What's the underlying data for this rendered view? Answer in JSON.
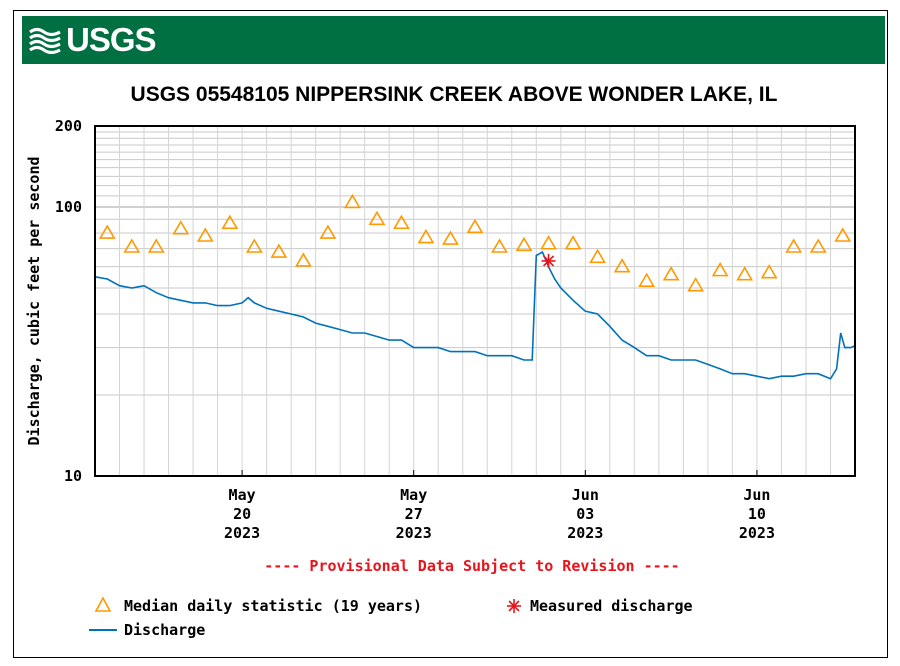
{
  "header": {
    "logo_text": "USGS",
    "logo_icon": "usgs-wave-icon",
    "brand_color": "#006f41"
  },
  "chart_data": {
    "type": "line",
    "title": "USGS 05548105 NIPPERSINK CREEK ABOVE WONDER LAKE, IL",
    "ylabel": "Discharge, cubic feet per second",
    "xlabel": "",
    "yscale": "log",
    "ylim": [
      10,
      200
    ],
    "xlim": [
      "2023-05-14",
      "2023-06-14"
    ],
    "grid": true,
    "y_tick_labels": [
      "10",
      "100",
      "200"
    ],
    "x_ticks": [
      {
        "date": "2023-05-20",
        "label": [
          "May",
          "20",
          "2023"
        ]
      },
      {
        "date": "2023-05-27",
        "label": [
          "May",
          "27",
          "2023"
        ]
      },
      {
        "date": "2023-06-03",
        "label": [
          "Jun",
          "03",
          "2023"
        ]
      },
      {
        "date": "2023-06-10",
        "label": [
          "Jun",
          "10",
          "2023"
        ]
      }
    ],
    "notice": "---- Provisional Data Subject to Revision ----",
    "series": [
      {
        "name": "Discharge",
        "color": "#0072bc",
        "points": [
          [
            "2023-05-14 00:00",
            55
          ],
          [
            "2023-05-14 12:00",
            54
          ],
          [
            "2023-05-15 00:00",
            51
          ],
          [
            "2023-05-15 12:00",
            50
          ],
          [
            "2023-05-16 00:00",
            51
          ],
          [
            "2023-05-16 12:00",
            48
          ],
          [
            "2023-05-17 00:00",
            46
          ],
          [
            "2023-05-17 12:00",
            45
          ],
          [
            "2023-05-18 00:00",
            44
          ],
          [
            "2023-05-18 12:00",
            44
          ],
          [
            "2023-05-19 00:00",
            43
          ],
          [
            "2023-05-19 12:00",
            43
          ],
          [
            "2023-05-20 00:00",
            44
          ],
          [
            "2023-05-20 06:00",
            46
          ],
          [
            "2023-05-20 12:00",
            44
          ],
          [
            "2023-05-21 00:00",
            42
          ],
          [
            "2023-05-21 12:00",
            41
          ],
          [
            "2023-05-22 00:00",
            40
          ],
          [
            "2023-05-22 12:00",
            39
          ],
          [
            "2023-05-23 00:00",
            37
          ],
          [
            "2023-05-23 12:00",
            36
          ],
          [
            "2023-05-24 00:00",
            35
          ],
          [
            "2023-05-24 12:00",
            34
          ],
          [
            "2023-05-25 00:00",
            34
          ],
          [
            "2023-05-25 12:00",
            33
          ],
          [
            "2023-05-26 00:00",
            32
          ],
          [
            "2023-05-26 12:00",
            32
          ],
          [
            "2023-05-27 00:00",
            30
          ],
          [
            "2023-05-27 12:00",
            30
          ],
          [
            "2023-05-28 00:00",
            30
          ],
          [
            "2023-05-28 12:00",
            29
          ],
          [
            "2023-05-29 00:00",
            29
          ],
          [
            "2023-05-29 12:00",
            29
          ],
          [
            "2023-05-30 00:00",
            28
          ],
          [
            "2023-05-30 12:00",
            28
          ],
          [
            "2023-05-31 00:00",
            28
          ],
          [
            "2023-05-31 12:00",
            27
          ],
          [
            "2023-05-31 20:00",
            27
          ],
          [
            "2023-06-01 00:00",
            66
          ],
          [
            "2023-06-01 06:00",
            68
          ],
          [
            "2023-06-01 12:00",
            60
          ],
          [
            "2023-06-01 18:00",
            54
          ],
          [
            "2023-06-02 00:00",
            50
          ],
          [
            "2023-06-02 12:00",
            45
          ],
          [
            "2023-06-03 00:00",
            41
          ],
          [
            "2023-06-03 12:00",
            40
          ],
          [
            "2023-06-04 00:00",
            36
          ],
          [
            "2023-06-04 12:00",
            32
          ],
          [
            "2023-06-05 00:00",
            30
          ],
          [
            "2023-06-05 12:00",
            28
          ],
          [
            "2023-06-06 00:00",
            28
          ],
          [
            "2023-06-06 12:00",
            27
          ],
          [
            "2023-06-07 00:00",
            27
          ],
          [
            "2023-06-07 12:00",
            27
          ],
          [
            "2023-06-08 00:00",
            26
          ],
          [
            "2023-06-08 12:00",
            25
          ],
          [
            "2023-06-09 00:00",
            24
          ],
          [
            "2023-06-09 12:00",
            24
          ],
          [
            "2023-06-10 00:00",
            23.5
          ],
          [
            "2023-06-10 12:00",
            23
          ],
          [
            "2023-06-11 00:00",
            23.5
          ],
          [
            "2023-06-11 12:00",
            23.5
          ],
          [
            "2023-06-12 00:00",
            24
          ],
          [
            "2023-06-12 12:00",
            24
          ],
          [
            "2023-06-13 00:00",
            23
          ],
          [
            "2023-06-13 06:00",
            25
          ],
          [
            "2023-06-13 10:00",
            34
          ],
          [
            "2023-06-13 14:00",
            30
          ],
          [
            "2023-06-13 20:00",
            30
          ],
          [
            "2023-06-14 00:00",
            30.5
          ]
        ]
      },
      {
        "name": "Median daily statistic (19 years)",
        "color": "#ff9900",
        "marker": "triangle",
        "points": [
          [
            "2023-05-14 12:00",
            80
          ],
          [
            "2023-05-15 12:00",
            71
          ],
          [
            "2023-05-16 12:00",
            71
          ],
          [
            "2023-05-17 12:00",
            83
          ],
          [
            "2023-05-18 12:00",
            78
          ],
          [
            "2023-05-19 12:00",
            87
          ],
          [
            "2023-05-20 12:00",
            71
          ],
          [
            "2023-05-21 12:00",
            68
          ],
          [
            "2023-05-22 12:00",
            63
          ],
          [
            "2023-05-23 12:00",
            80
          ],
          [
            "2023-05-24 12:00",
            104
          ],
          [
            "2023-05-25 12:00",
            90
          ],
          [
            "2023-05-26 12:00",
            87
          ],
          [
            "2023-05-27 12:00",
            77
          ],
          [
            "2023-05-28 12:00",
            76
          ],
          [
            "2023-05-29 12:00",
            84
          ],
          [
            "2023-05-30 12:00",
            71
          ],
          [
            "2023-05-31 12:00",
            72
          ],
          [
            "2023-06-01 12:00",
            73
          ],
          [
            "2023-06-02 12:00",
            73
          ],
          [
            "2023-06-03 12:00",
            65
          ],
          [
            "2023-06-04 12:00",
            60
          ],
          [
            "2023-06-05 12:00",
            53
          ],
          [
            "2023-06-06 12:00",
            56
          ],
          [
            "2023-06-07 12:00",
            51
          ],
          [
            "2023-06-08 12:00",
            58
          ],
          [
            "2023-06-09 12:00",
            56
          ],
          [
            "2023-06-10 12:00",
            57
          ],
          [
            "2023-06-11 12:00",
            71
          ],
          [
            "2023-06-12 12:00",
            71
          ],
          [
            "2023-06-13 12:00",
            78
          ]
        ]
      },
      {
        "name": "Measured discharge",
        "color": "#e8141c",
        "marker": "asterisk",
        "points": [
          [
            "2023-06-01 12:00",
            63
          ]
        ]
      }
    ],
    "legend": {
      "placement": "bottom-left",
      "items": [
        {
          "label": "Median daily statistic (19 years)",
          "symbol": "triangle-icon",
          "color": "#ff9900"
        },
        {
          "label": "Measured discharge",
          "symbol": "asterisk-icon",
          "color": "#e8141c"
        },
        {
          "label": "Discharge",
          "symbol": "line-icon",
          "color": "#0072bc"
        }
      ]
    }
  }
}
